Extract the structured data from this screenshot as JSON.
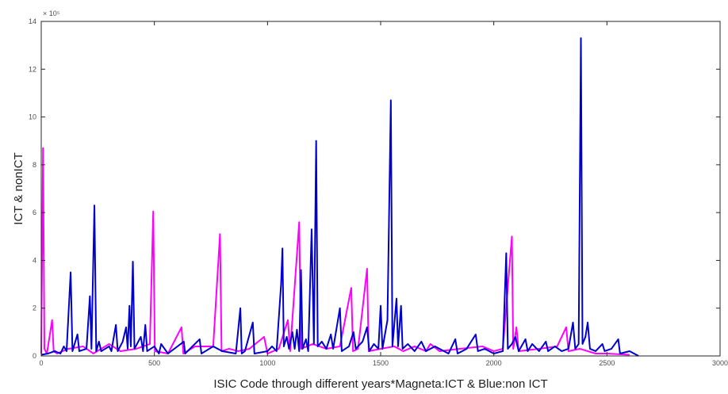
{
  "chart_data": {
    "type": "line",
    "xlabel": "ISIC Code through different years*Magneta:ICT & Blue:non ICT",
    "ylabel": "ICT & nonICT",
    "y_exponent_label": "× 10⁵",
    "y_multiplier": 100000,
    "xlim": [
      0,
      3000
    ],
    "ylim": [
      0,
      14
    ],
    "x_ticks": [
      0,
      500,
      1000,
      1500,
      2000,
      2500,
      3000
    ],
    "y_ticks": [
      0,
      2,
      4,
      6,
      8,
      10,
      12,
      14
    ],
    "grid": false,
    "colors": {
      "ict": "#ff00ff",
      "non_ict": "#0000cc",
      "axis": "#262626"
    },
    "series": [
      {
        "key": "ict",
        "points": [
          [
            0,
            0.1
          ],
          [
            8,
            8.7
          ],
          [
            14,
            0.3
          ],
          [
            25,
            0.1
          ],
          [
            48,
            1.5
          ],
          [
            55,
            0.2
          ],
          [
            70,
            0.1
          ],
          [
            120,
            0.3
          ],
          [
            185,
            0.4
          ],
          [
            230,
            0.1
          ],
          [
            300,
            0.5
          ],
          [
            350,
            0.2
          ],
          [
            420,
            0.3
          ],
          [
            480,
            0.5
          ],
          [
            495,
            6.05
          ],
          [
            502,
            0.2
          ],
          [
            560,
            0.1
          ],
          [
            620,
            1.2
          ],
          [
            628,
            0.1
          ],
          [
            680,
            0.4
          ],
          [
            760,
            0.4
          ],
          [
            790,
            5.1
          ],
          [
            797,
            0.2
          ],
          [
            830,
            0.3
          ],
          [
            870,
            0.2
          ],
          [
            920,
            0.3
          ],
          [
            985,
            0.8
          ],
          [
            1000,
            0.1
          ],
          [
            1050,
            0.3
          ],
          [
            1090,
            1.5
          ],
          [
            1100,
            0.2
          ],
          [
            1140,
            5.6
          ],
          [
            1148,
            0.3
          ],
          [
            1200,
            0.5
          ],
          [
            1260,
            0.3
          ],
          [
            1320,
            0.4
          ],
          [
            1370,
            2.85
          ],
          [
            1378,
            0.2
          ],
          [
            1400,
            0.3
          ],
          [
            1440,
            3.65
          ],
          [
            1447,
            0.2
          ],
          [
            1500,
            0.3
          ],
          [
            1560,
            0.4
          ],
          [
            1600,
            0.2
          ],
          [
            1650,
            0.4
          ],
          [
            1700,
            0.2
          ],
          [
            1720,
            0.5
          ],
          [
            1760,
            0.2
          ],
          [
            1850,
            0.3
          ],
          [
            1950,
            0.4
          ],
          [
            2000,
            0.2
          ],
          [
            2040,
            0.3
          ],
          [
            2080,
            5.0
          ],
          [
            2086,
            0.3
          ],
          [
            2100,
            1.2
          ],
          [
            2110,
            0.2
          ],
          [
            2200,
            0.3
          ],
          [
            2280,
            0.4
          ],
          [
            2320,
            1.2
          ],
          [
            2330,
            0.2
          ],
          [
            2380,
            0.3
          ],
          [
            2450,
            0.1
          ],
          [
            2500,
            0.1
          ],
          [
            2600,
            0.05
          ]
        ]
      },
      {
        "key": "non_ict",
        "points": [
          [
            0,
            0.05
          ],
          [
            30,
            0.1
          ],
          [
            60,
            0.2
          ],
          [
            85,
            0.1
          ],
          [
            100,
            0.4
          ],
          [
            112,
            0.2
          ],
          [
            130,
            3.5
          ],
          [
            138,
            0.2
          ],
          [
            160,
            0.9
          ],
          [
            168,
            0.2
          ],
          [
            200,
            0.3
          ],
          [
            215,
            2.5
          ],
          [
            222,
            0.3
          ],
          [
            235,
            6.3
          ],
          [
            243,
            0.2
          ],
          [
            255,
            0.6
          ],
          [
            265,
            0.2
          ],
          [
            300,
            0.4
          ],
          [
            310,
            0.2
          ],
          [
            330,
            1.3
          ],
          [
            338,
            0.2
          ],
          [
            360,
            0.6
          ],
          [
            375,
            1.2
          ],
          [
            382,
            0.3
          ],
          [
            390,
            2.1
          ],
          [
            396,
            0.4
          ],
          [
            405,
            3.95
          ],
          [
            412,
            0.3
          ],
          [
            440,
            0.8
          ],
          [
            450,
            0.2
          ],
          [
            460,
            1.3
          ],
          [
            468,
            0.2
          ],
          [
            500,
            0.4
          ],
          [
            520,
            0.1
          ],
          [
            530,
            0.5
          ],
          [
            560,
            0.1
          ],
          [
            630,
            0.6
          ],
          [
            636,
            0.1
          ],
          [
            700,
            0.7
          ],
          [
            708,
            0.1
          ],
          [
            760,
            0.4
          ],
          [
            800,
            0.2
          ],
          [
            860,
            0.1
          ],
          [
            880,
            2.0
          ],
          [
            886,
            0.1
          ],
          [
            900,
            0.2
          ],
          [
            935,
            1.4
          ],
          [
            942,
            0.1
          ],
          [
            1000,
            0.2
          ],
          [
            1020,
            0.4
          ],
          [
            1040,
            0.2
          ],
          [
            1060,
            3.0
          ],
          [
            1066,
            4.5
          ],
          [
            1072,
            0.4
          ],
          [
            1085,
            0.8
          ],
          [
            1095,
            0.3
          ],
          [
            1110,
            1.0
          ],
          [
            1120,
            0.3
          ],
          [
            1130,
            1.1
          ],
          [
            1140,
            0.2
          ],
          [
            1148,
            3.6
          ],
          [
            1155,
            0.3
          ],
          [
            1170,
            0.7
          ],
          [
            1180,
            0.2
          ],
          [
            1195,
            5.3
          ],
          [
            1205,
            0.5
          ],
          [
            1215,
            9.0
          ],
          [
            1222,
            0.4
          ],
          [
            1240,
            0.6
          ],
          [
            1260,
            0.3
          ],
          [
            1280,
            0.9
          ],
          [
            1290,
            0.3
          ],
          [
            1320,
            2.0
          ],
          [
            1328,
            0.2
          ],
          [
            1360,
            0.4
          ],
          [
            1380,
            1.0
          ],
          [
            1390,
            0.3
          ],
          [
            1420,
            0.6
          ],
          [
            1440,
            1.2
          ],
          [
            1450,
            0.2
          ],
          [
            1470,
            0.5
          ],
          [
            1490,
            0.3
          ],
          [
            1500,
            2.1
          ],
          [
            1508,
            0.3
          ],
          [
            1530,
            1.5
          ],
          [
            1545,
            10.7
          ],
          [
            1552,
            0.4
          ],
          [
            1570,
            2.4
          ],
          [
            1577,
            0.4
          ],
          [
            1590,
            2.1
          ],
          [
            1597,
            0.3
          ],
          [
            1620,
            0.5
          ],
          [
            1650,
            0.2
          ],
          [
            1680,
            0.6
          ],
          [
            1700,
            0.2
          ],
          [
            1740,
            0.4
          ],
          [
            1780,
            0.2
          ],
          [
            1800,
            0.1
          ],
          [
            1830,
            0.7
          ],
          [
            1840,
            0.1
          ],
          [
            1880,
            0.3
          ],
          [
            1920,
            0.9
          ],
          [
            1930,
            0.2
          ],
          [
            1960,
            0.3
          ],
          [
            2000,
            0.1
          ],
          [
            2040,
            0.2
          ],
          [
            2055,
            4.3
          ],
          [
            2062,
            0.3
          ],
          [
            2080,
            0.5
          ],
          [
            2095,
            0.8
          ],
          [
            2110,
            0.2
          ],
          [
            2140,
            0.7
          ],
          [
            2150,
            0.2
          ],
          [
            2170,
            0.5
          ],
          [
            2200,
            0.2
          ],
          [
            2230,
            0.6
          ],
          [
            2240,
            0.2
          ],
          [
            2270,
            0.4
          ],
          [
            2300,
            0.2
          ],
          [
            2330,
            0.3
          ],
          [
            2350,
            1.4
          ],
          [
            2360,
            0.3
          ],
          [
            2375,
            0.5
          ],
          [
            2385,
            13.3
          ],
          [
            2392,
            0.5
          ],
          [
            2405,
            0.8
          ],
          [
            2415,
            1.4
          ],
          [
            2425,
            0.3
          ],
          [
            2450,
            0.2
          ],
          [
            2480,
            0.5
          ],
          [
            2490,
            0.2
          ],
          [
            2520,
            0.3
          ],
          [
            2550,
            0.7
          ],
          [
            2558,
            0.1
          ],
          [
            2600,
            0.2
          ],
          [
            2620,
            0.1
          ],
          [
            2640,
            0.0
          ]
        ]
      }
    ]
  }
}
